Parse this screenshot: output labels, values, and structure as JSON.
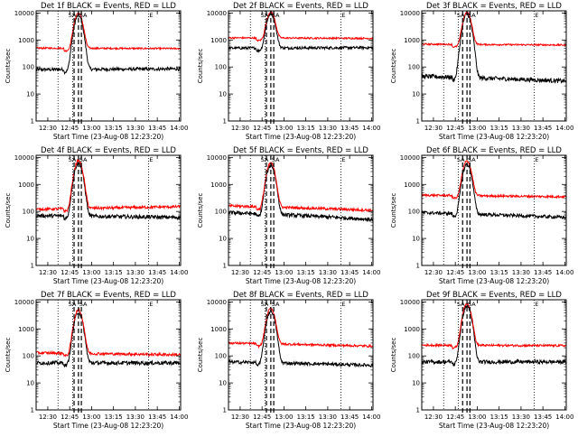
{
  "chart_data": [
    {
      "type": "line",
      "title": "Det 1f BLACK = Events, RED = LLD",
      "xlabel": "Start Time (23-Aug-08 12:23:20)",
      "ylabel": "Counts/sec",
      "yscale": "log",
      "ylim": [
        1,
        12000
      ],
      "x_ticks": [
        "12:30",
        "12:45",
        "13:00",
        "13:15",
        "13:30",
        "13:45",
        "14:00"
      ],
      "y_ticks": [
        "1",
        "10",
        "100",
        "1000",
        "10000"
      ],
      "annotations": [
        "SA",
        "SA",
        "E"
      ],
      "series": [
        {
          "color": "#000000",
          "base": 80,
          "peak": 8000,
          "end": 85,
          "noise": 0.06
        },
        {
          "color": "#ff0000",
          "base": 500,
          "peak": 9500,
          "end": 480,
          "noise": 0.03
        }
      ],
      "markers": {
        "dotted": [
          "12:37",
          "12:47",
          "13:39"
        ],
        "dashed": [
          "12:48",
          "12:51",
          "12:53"
        ]
      },
      "peak_time": "12:51"
    },
    {
      "type": "line",
      "title": "Det 2f BLACK = Events, RED = LLD",
      "xlabel": "Start Time (23-Aug-08 12:23:20)",
      "ylabel": "Counts/sec",
      "yscale": "log",
      "ylim": [
        1,
        12000
      ],
      "x_ticks": [
        "12:30",
        "12:45",
        "13:00",
        "13:15",
        "13:30",
        "13:45",
        "14:00"
      ],
      "y_ticks": [
        "1",
        "10",
        "100",
        "1000",
        "10000"
      ],
      "annotations": [
        "SA",
        "SA",
        "E"
      ],
      "series": [
        {
          "color": "#000000",
          "base": 500,
          "peak": 9000,
          "end": 520,
          "noise": 0.05
        },
        {
          "color": "#ff0000",
          "base": 1200,
          "peak": 9800,
          "end": 1150,
          "noise": 0.03
        }
      ],
      "markers": {
        "dotted": [
          "12:37",
          "12:47",
          "13:39"
        ],
        "dashed": [
          "12:48",
          "12:51",
          "12:53"
        ]
      },
      "peak_time": "12:51"
    },
    {
      "type": "line",
      "title": "Det 3f BLACK = Events, RED = LLD",
      "xlabel": "Start Time (23-Aug-08 12:23:20)",
      "ylabel": "Counts/sec",
      "yscale": "log",
      "ylim": [
        1,
        12000
      ],
      "x_ticks": [
        "12:30",
        "12:45",
        "13:00",
        "13:15",
        "13:30",
        "13:45",
        "14:00"
      ],
      "y_ticks": [
        "1",
        "10",
        "100",
        "1000",
        "10000"
      ],
      "annotations": [
        "SA",
        "SA",
        "E"
      ],
      "series": [
        {
          "color": "#000000",
          "base": 45,
          "peak": 9000,
          "end": 30,
          "noise": 0.08
        },
        {
          "color": "#ff0000",
          "base": 700,
          "peak": 9800,
          "end": 650,
          "noise": 0.03
        }
      ],
      "markers": {
        "dotted": [
          "12:37",
          "12:47",
          "13:39"
        ],
        "dashed": [
          "12:50",
          "12:53",
          "12:55"
        ]
      },
      "peak_time": "12:53"
    },
    {
      "type": "line",
      "title": "Det 4f BLACK = Events, RED = LLD",
      "xlabel": "Start Time (23-Aug-08 12:23:20)",
      "ylabel": "Counts/sec",
      "yscale": "log",
      "ylim": [
        1,
        12000
      ],
      "x_ticks": [
        "12:30",
        "12:45",
        "13:00",
        "13:15",
        "13:30",
        "13:45",
        "14:00"
      ],
      "y_ticks": [
        "1",
        "10",
        "100",
        "1000",
        "10000"
      ],
      "annotations": [
        "SA",
        "SA",
        "E"
      ],
      "series": [
        {
          "color": "#000000",
          "base": 70,
          "peak": 6000,
          "end": 60,
          "noise": 0.07
        },
        {
          "color": "#ff0000",
          "base": 120,
          "peak": 7500,
          "end": 150,
          "noise": 0.05
        }
      ],
      "markers": {
        "dotted": [
          "12:37",
          "12:47",
          "13:39"
        ],
        "dashed": [
          "12:48",
          "12:51",
          "12:53"
        ]
      },
      "peak_time": "12:51"
    },
    {
      "type": "line",
      "title": "Det 5f BLACK = Events, RED = LLD",
      "xlabel": "Start Time (23-Aug-08 12:23:20)",
      "ylabel": "Counts/sec",
      "yscale": "log",
      "ylim": [
        1,
        12000
      ],
      "x_ticks": [
        "12:30",
        "12:45",
        "13:00",
        "13:15",
        "13:30",
        "13:45",
        "14:00"
      ],
      "y_ticks": [
        "1",
        "10",
        "100",
        "1000",
        "10000"
      ],
      "annotations": [
        "SA",
        "SA",
        "E"
      ],
      "series": [
        {
          "color": "#000000",
          "base": 90,
          "peak": 5000,
          "end": 50,
          "noise": 0.07
        },
        {
          "color": "#ff0000",
          "base": 160,
          "peak": 6000,
          "end": 110,
          "noise": 0.05
        }
      ],
      "markers": {
        "dotted": [
          "12:37",
          "12:47",
          "13:39"
        ],
        "dashed": [
          "12:48",
          "12:51",
          "12:53"
        ]
      },
      "peak_time": "12:51"
    },
    {
      "type": "line",
      "title": "Det 6f BLACK = Events, RED = LLD",
      "xlabel": "Start Time (23-Aug-08 12:23:20)",
      "ylabel": "Counts/sec",
      "yscale": "log",
      "ylim": [
        1,
        12000
      ],
      "x_ticks": [
        "12:30",
        "12:45",
        "13:00",
        "13:15",
        "13:30",
        "13:45",
        "14:00"
      ],
      "y_ticks": [
        "1",
        "10",
        "100",
        "1000",
        "10000"
      ],
      "annotations": [
        "SA",
        "SA",
        "E"
      ],
      "series": [
        {
          "color": "#000000",
          "base": 90,
          "peak": 5500,
          "end": 60,
          "noise": 0.06
        },
        {
          "color": "#ff0000",
          "base": 400,
          "peak": 7000,
          "end": 350,
          "noise": 0.04
        }
      ],
      "markers": {
        "dotted": [
          "12:37",
          "12:47",
          "13:39"
        ],
        "dashed": [
          "12:50",
          "12:53",
          "12:55"
        ]
      },
      "peak_time": "12:53"
    },
    {
      "type": "line",
      "title": "Det 7f BLACK = Events, RED = LLD",
      "xlabel": "Start Time (23-Aug-08 12:23:20)",
      "ylabel": "Counts/sec",
      "yscale": "log",
      "ylim": [
        1,
        12000
      ],
      "x_ticks": [
        "12:30",
        "12:45",
        "13:00",
        "13:15",
        "13:30",
        "13:45",
        "14:00"
      ],
      "y_ticks": [
        "1",
        "10",
        "100",
        "1000",
        "10000"
      ],
      "annotations": [
        "SA",
        "SA",
        "E"
      ],
      "series": [
        {
          "color": "#000000",
          "base": 55,
          "peak": 4000,
          "end": 55,
          "noise": 0.07
        },
        {
          "color": "#ff0000",
          "base": 130,
          "peak": 5000,
          "end": 110,
          "noise": 0.05
        }
      ],
      "markers": {
        "dotted": [
          "12:37",
          "12:47",
          "13:39"
        ],
        "dashed": [
          "12:48",
          "12:51",
          "12:53"
        ]
      },
      "peak_time": "12:51"
    },
    {
      "type": "line",
      "title": "Det 8f BLACK = Events, RED = LLD",
      "xlabel": "Start Time (23-Aug-08 12:23:20)",
      "ylabel": "Counts/sec",
      "yscale": "log",
      "ylim": [
        1,
        12000
      ],
      "x_ticks": [
        "12:30",
        "12:45",
        "13:00",
        "13:15",
        "13:30",
        "13:45",
        "14:00"
      ],
      "y_ticks": [
        "1",
        "10",
        "100",
        "1000",
        "10000"
      ],
      "annotations": [
        "SA",
        "SA",
        "E"
      ],
      "series": [
        {
          "color": "#000000",
          "base": 60,
          "peak": 4500,
          "end": 45,
          "noise": 0.06
        },
        {
          "color": "#ff0000",
          "base": 300,
          "peak": 5500,
          "end": 230,
          "noise": 0.04
        }
      ],
      "markers": {
        "dotted": [
          "12:37",
          "12:47",
          "13:39"
        ],
        "dashed": [
          "12:48",
          "12:51",
          "12:53"
        ]
      },
      "peak_time": "12:51"
    },
    {
      "type": "line",
      "title": "Det 9f BLACK = Events, RED = LLD",
      "xlabel": "Start Time (23-Aug-08 12:23:20)",
      "ylabel": "Counts/sec",
      "yscale": "log",
      "ylim": [
        1,
        12000
      ],
      "x_ticks": [
        "12:30",
        "12:45",
        "13:00",
        "13:15",
        "13:30",
        "13:45",
        "14:00"
      ],
      "y_ticks": [
        "1",
        "10",
        "100",
        "1000",
        "10000"
      ],
      "annotations": [
        "SA",
        "SA",
        "E"
      ],
      "series": [
        {
          "color": "#000000",
          "base": 60,
          "peak": 7000,
          "end": 60,
          "noise": 0.07
        },
        {
          "color": "#ff0000",
          "base": 250,
          "peak": 8500,
          "end": 240,
          "noise": 0.04
        }
      ],
      "markers": {
        "dotted": [
          "12:37",
          "12:47",
          "13:39"
        ],
        "dashed": [
          "12:50",
          "12:53",
          "12:55"
        ]
      },
      "peak_time": "12:53"
    }
  ]
}
